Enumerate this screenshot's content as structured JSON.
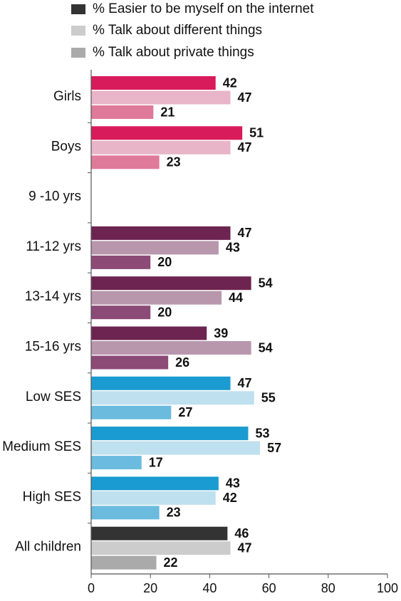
{
  "chart_data": {
    "type": "bar",
    "orientation": "horizontal",
    "legend": {
      "placement": "top",
      "entries": [
        {
          "label": "% Easier to be myself on the internet",
          "color": "#333333"
        },
        {
          "label": "% Talk about different things",
          "color": "#cccccc"
        },
        {
          "label": "% Talk about private things",
          "color": "#aaaaaa"
        }
      ]
    },
    "xlim": [
      0,
      100
    ],
    "xticks": [
      "0",
      "20",
      "40",
      "60",
      "80",
      "100"
    ],
    "grid": false,
    "groups": [
      {
        "label": "Girls",
        "values": [
          42,
          47,
          21
        ],
        "colors": [
          "#d81b5a",
          "#e8b5c8",
          "#e07a9b"
        ]
      },
      {
        "label": "Boys",
        "values": [
          51,
          47,
          23
        ],
        "colors": [
          "#d81b5a",
          "#e8b5c8",
          "#e07a9b"
        ]
      },
      {
        "label": "9 -10 yrs",
        "values": [
          null,
          null,
          null
        ],
        "colors": [
          "#6e2450",
          "#b897ad",
          "#8c4a77"
        ]
      },
      {
        "label": "11-12 yrs",
        "values": [
          47,
          43,
          20
        ],
        "colors": [
          "#6e2450",
          "#b897ad",
          "#8c4a77"
        ]
      },
      {
        "label": "13-14 yrs",
        "values": [
          54,
          44,
          20
        ],
        "colors": [
          "#6e2450",
          "#b897ad",
          "#8c4a77"
        ]
      },
      {
        "label": "15-16 yrs",
        "values": [
          39,
          54,
          26
        ],
        "colors": [
          "#6e2450",
          "#b897ad",
          "#8c4a77"
        ]
      },
      {
        "label": "Low  SES",
        "values": [
          47,
          55,
          27
        ],
        "colors": [
          "#1a9bd1",
          "#bfe0ee",
          "#6bbbdf"
        ]
      },
      {
        "label": "Medium SES",
        "values": [
          53,
          57,
          17
        ],
        "colors": [
          "#1a9bd1",
          "#bfe0ee",
          "#6bbbdf"
        ]
      },
      {
        "label": "High SES",
        "values": [
          43,
          42,
          23
        ],
        "colors": [
          "#1a9bd1",
          "#bfe0ee",
          "#6bbbdf"
        ]
      },
      {
        "label": "All children",
        "values": [
          46,
          47,
          22
        ],
        "colors": [
          "#333333",
          "#cccccc",
          "#aaaaaa"
        ]
      }
    ]
  }
}
